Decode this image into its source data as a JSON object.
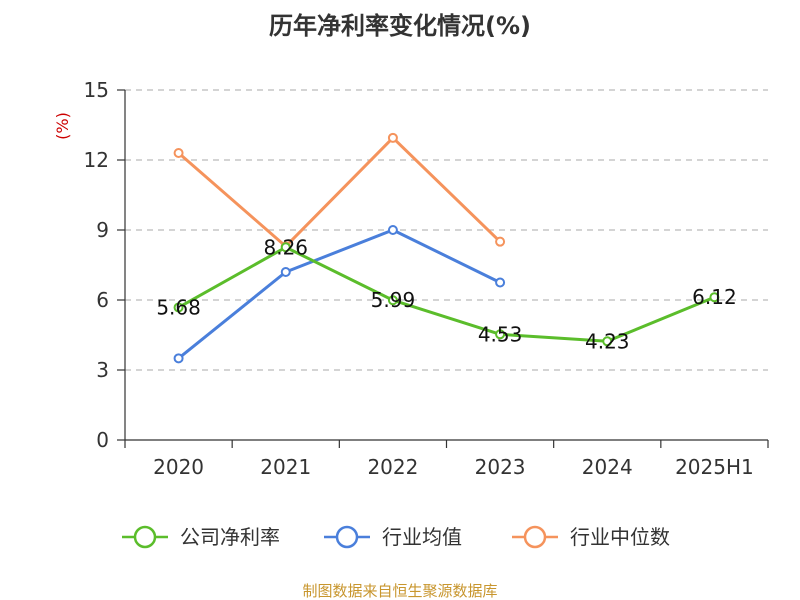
{
  "chart_data": {
    "type": "line",
    "title": "历年净利率变化情况(%)",
    "unit_label": "(%)",
    "categories": [
      "2020",
      "2021",
      "2022",
      "2023",
      "2024",
      "2025H1"
    ],
    "ylim": [
      0,
      15
    ],
    "yticks": [
      "0",
      "3",
      "6",
      "9",
      "12",
      "15"
    ],
    "grid": true,
    "legend_position": "bottom",
    "series": [
      {
        "name": "公司净利率",
        "color": "#5bbd2b",
        "values": [
          5.68,
          8.26,
          5.99,
          4.53,
          4.23,
          6.12
        ],
        "labels": [
          "5.68",
          "8.26",
          "5.99",
          "4.53",
          "4.23",
          "6.12"
        ]
      },
      {
        "name": "行业均值",
        "color": "#4a7fdb",
        "values": [
          3.5,
          7.2,
          9.0,
          6.75,
          null,
          null
        ],
        "labels": []
      },
      {
        "name": "行业中位数",
        "color": "#f5935c",
        "values": [
          12.3,
          8.3,
          12.95,
          8.5,
          null,
          null
        ],
        "labels": []
      }
    ],
    "source": "制图数据来自恒生聚源数据库"
  }
}
